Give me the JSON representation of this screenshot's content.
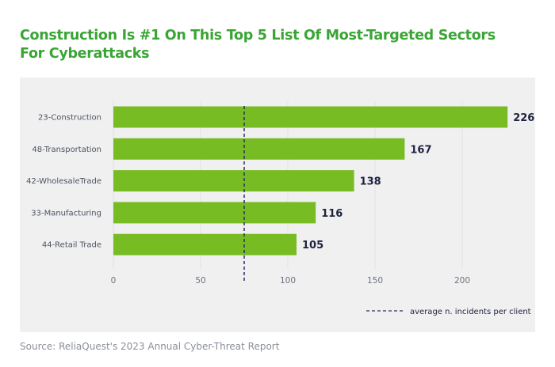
{
  "title_line1": "Construction Is #1 On This Top 5 List Of Most-Targeted Sectors",
  "title_line2": "For Cyberattacks",
  "source": "Source: ReliaQuest's 2023 Annual Cyber-Threat Report",
  "chart_data": {
    "type": "bar",
    "orientation": "horizontal",
    "categories": [
      "23-Construction",
      "48-Transportation",
      "42-WholesaleTrade",
      "33-Manufacturing",
      "44-Retail Trade"
    ],
    "values": [
      226,
      167,
      138,
      116,
      105
    ],
    "xticks": [
      0,
      50,
      100,
      150,
      200
    ],
    "xlim": [
      0,
      240
    ],
    "reference_line": {
      "value": 75,
      "label": "average n. incidents per client"
    },
    "legend_placement": "bottom-right",
    "colors": {
      "bar": "#78bc24",
      "reference": "#2b2e63",
      "title": "#3aa535"
    }
  }
}
